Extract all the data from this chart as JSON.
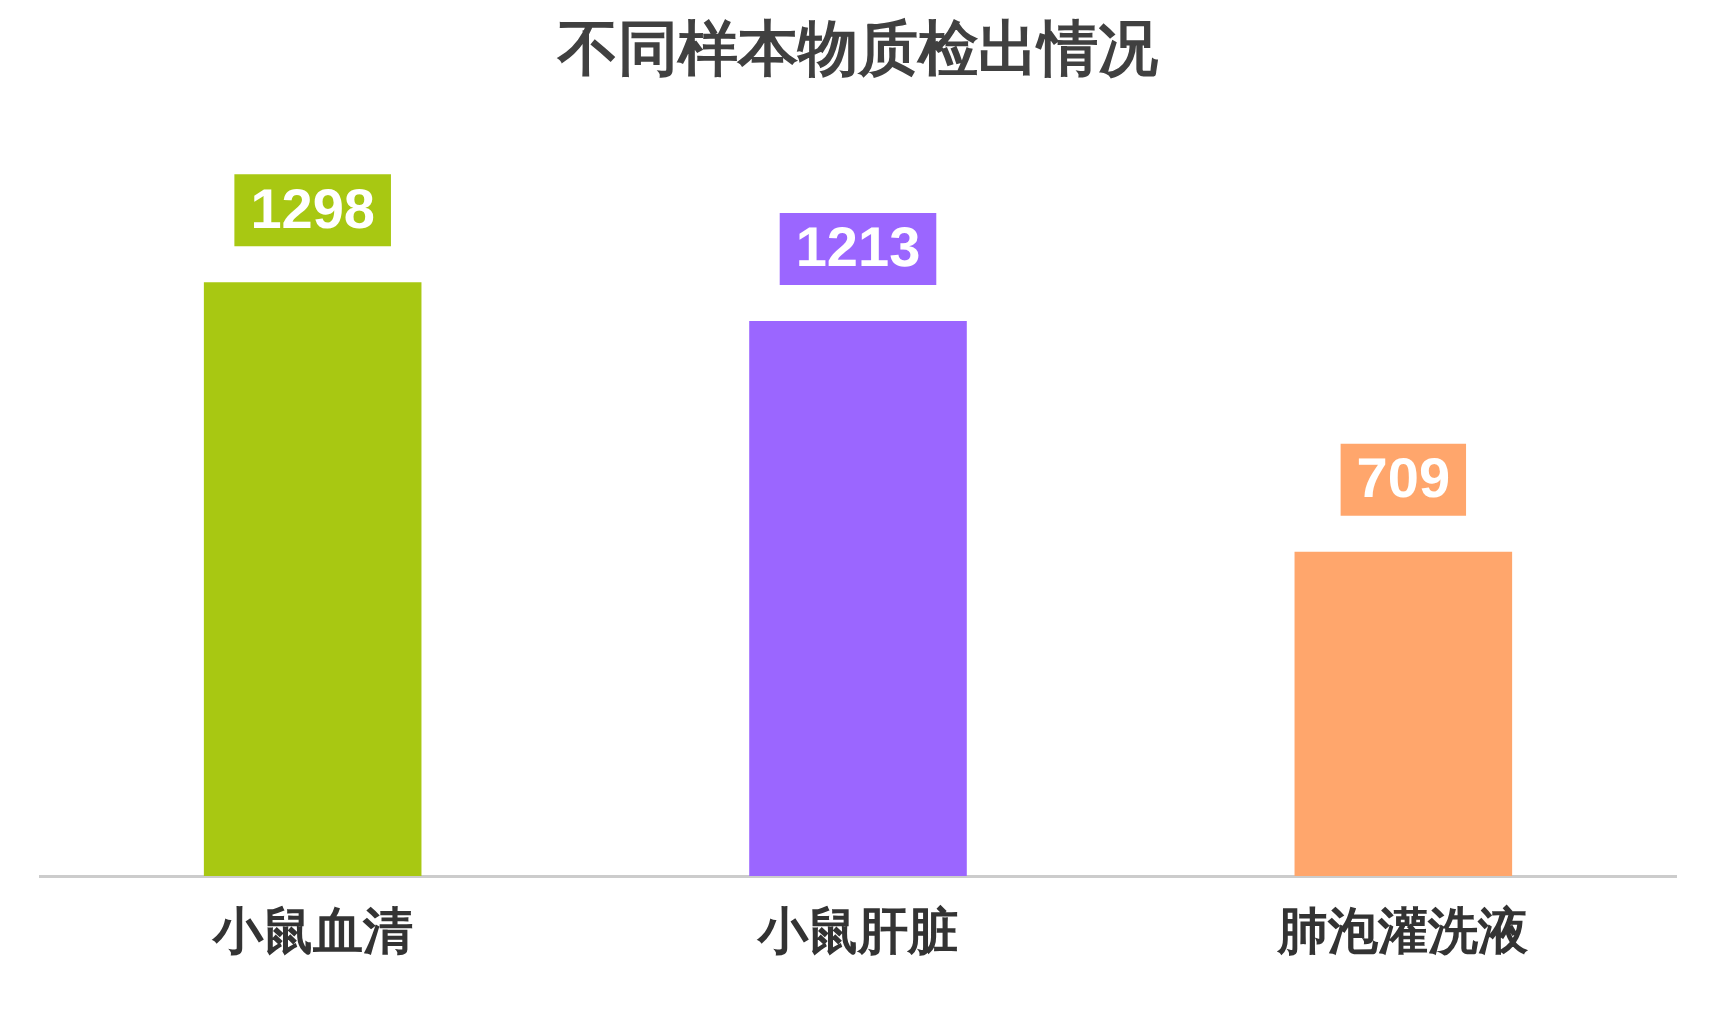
{
  "chart_data": {
    "type": "bar",
    "title": "不同样本物质检出情况",
    "categories": [
      "小鼠血清",
      "小鼠肝脏",
      "肺泡灌洗液"
    ],
    "values": [
      1298,
      1213,
      709
    ],
    "colors": [
      "#a8c812",
      "#9b66ff",
      "#ffa66c"
    ],
    "data_labels": true,
    "grid": false,
    "legend": false
  }
}
